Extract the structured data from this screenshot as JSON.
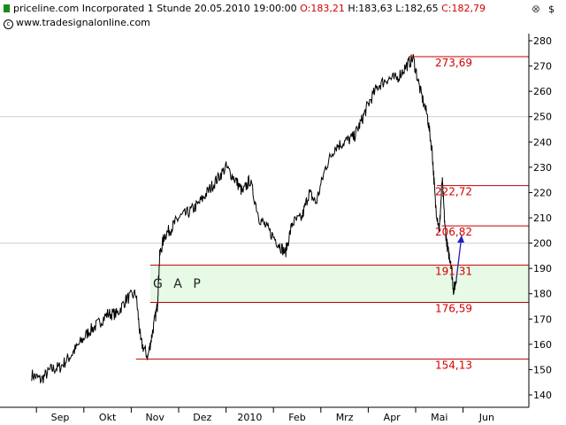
{
  "header": {
    "symbol": "priceline.com Incorporated",
    "interval": "1 Stunde",
    "datetime": "20.05.2010 19:00:00",
    "open": "O:183,21",
    "high": "H:183,63",
    "low": "L:182,65",
    "close": "C:182,79",
    "website": "www.tradesignalonline.com",
    "axis_unit": "$"
  },
  "chart_data": {
    "type": "line",
    "title": "priceline.com Incorporated 1 Stunde",
    "ylim": [
      137,
      285
    ],
    "y_ticks": [
      140,
      150,
      160,
      170,
      180,
      190,
      200,
      210,
      220,
      230,
      240,
      250,
      260,
      270,
      280
    ],
    "x_tick_labels": [
      "Sep",
      "Okt",
      "Nov",
      "Dez",
      "2010",
      "Feb",
      "Mrz",
      "Apr",
      "Mai",
      "Jun"
    ],
    "x_month_index": [
      0,
      1,
      2,
      3,
      4,
      5,
      6,
      7,
      8,
      9
    ],
    "grid": "horizontal at 200 and 250",
    "series": [
      {
        "color": "#000000",
        "x": [
          -0.6,
          -0.4,
          -0.2,
          0.0,
          0.2,
          0.4,
          0.6,
          0.8,
          1.0,
          1.2,
          1.4,
          1.6,
          1.7,
          1.85,
          1.95,
          2.05,
          2.1,
          2.2,
          2.35,
          2.5,
          2.7,
          2.9,
          3.1,
          3.3,
          3.5,
          3.7,
          3.85,
          4.0,
          4.2,
          4.4,
          4.6,
          4.75,
          4.9,
          5.1,
          5.25,
          5.4,
          5.6,
          5.8,
          6.0,
          6.2,
          6.35,
          6.5,
          6.7,
          6.9,
          7.1,
          7.3,
          7.45,
          7.6,
          7.75,
          7.85,
          7.92,
          8.0,
          8.06,
          8.12,
          8.18,
          8.24,
          8.3,
          8.36
        ],
        "values": [
          148,
          146,
          150,
          151,
          155,
          160,
          165,
          168,
          172,
          172,
          178,
          180,
          161,
          155,
          165,
          175,
          195,
          203,
          206,
          210,
          212,
          215,
          220,
          225,
          230,
          225,
          220,
          225,
          210,
          205,
          200,
          196,
          208,
          210,
          220,
          216,
          230,
          238,
          240,
          242,
          248,
          255,
          262,
          265,
          265,
          270,
          273,
          260,
          250,
          236,
          215,
          205,
          225,
          206,
          197,
          193,
          181,
          186
        ]
      },
      {
        "color": "#2020c0",
        "x": [
          8.36,
          8.47
        ],
        "values": [
          186,
          203
        ]
      }
    ],
    "levels": [
      {
        "value": 273.69,
        "label": "273,69",
        "x_start": 7.35
      },
      {
        "value": 222.72,
        "label": "222,72",
        "x_start": 7.95
      },
      {
        "value": 206.82,
        "label": "206,82",
        "x_start": 8.05
      },
      {
        "value": 191.31,
        "label": "191,31",
        "x_start": 1.9
      },
      {
        "value": 176.59,
        "label": "176,59",
        "x_start": 1.9
      },
      {
        "value": 154.13,
        "label": "154,13",
        "x_start": 1.6
      }
    ],
    "gap_zone": {
      "from": 176.59,
      "to": 191.31,
      "label": "G A P",
      "color": "#e6fae6"
    }
  }
}
